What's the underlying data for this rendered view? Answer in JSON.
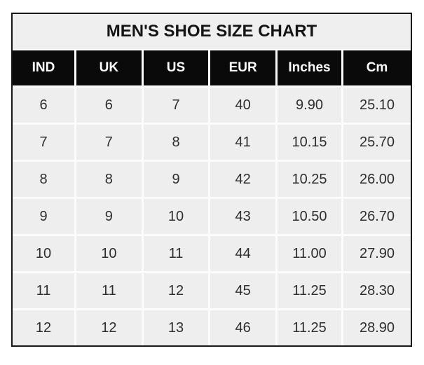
{
  "chart_data": {
    "type": "table",
    "title": "MEN'S SHOE SIZE CHART",
    "columns": [
      "IND",
      "UK",
      "US",
      "EUR",
      "Inches",
      "Cm"
    ],
    "rows": [
      [
        "6",
        "6",
        "7",
        "40",
        "9.90",
        "25.10"
      ],
      [
        "7",
        "7",
        "8",
        "41",
        "10.15",
        "25.70"
      ],
      [
        "8",
        "8",
        "9",
        "42",
        "10.25",
        "26.00"
      ],
      [
        "9",
        "9",
        "10",
        "43",
        "10.50",
        "26.70"
      ],
      [
        "10",
        "10",
        "11",
        "44",
        "11.00",
        "27.90"
      ],
      [
        "11",
        "11",
        "12",
        "45",
        "11.25",
        "28.30"
      ],
      [
        "12",
        "12",
        "13",
        "46",
        "11.25",
        "28.90"
      ]
    ]
  },
  "colors": {
    "page_bg": "#ffffff",
    "border": "#161616",
    "title_bg": "#f0efef",
    "title_text": "#141414",
    "header_bg": "#0a0a0a",
    "header_text": "#ffffff",
    "cell_bg": "#efeeee",
    "cell_text": "#2e2e2e",
    "grid_gap": "#fcfcfc"
  }
}
